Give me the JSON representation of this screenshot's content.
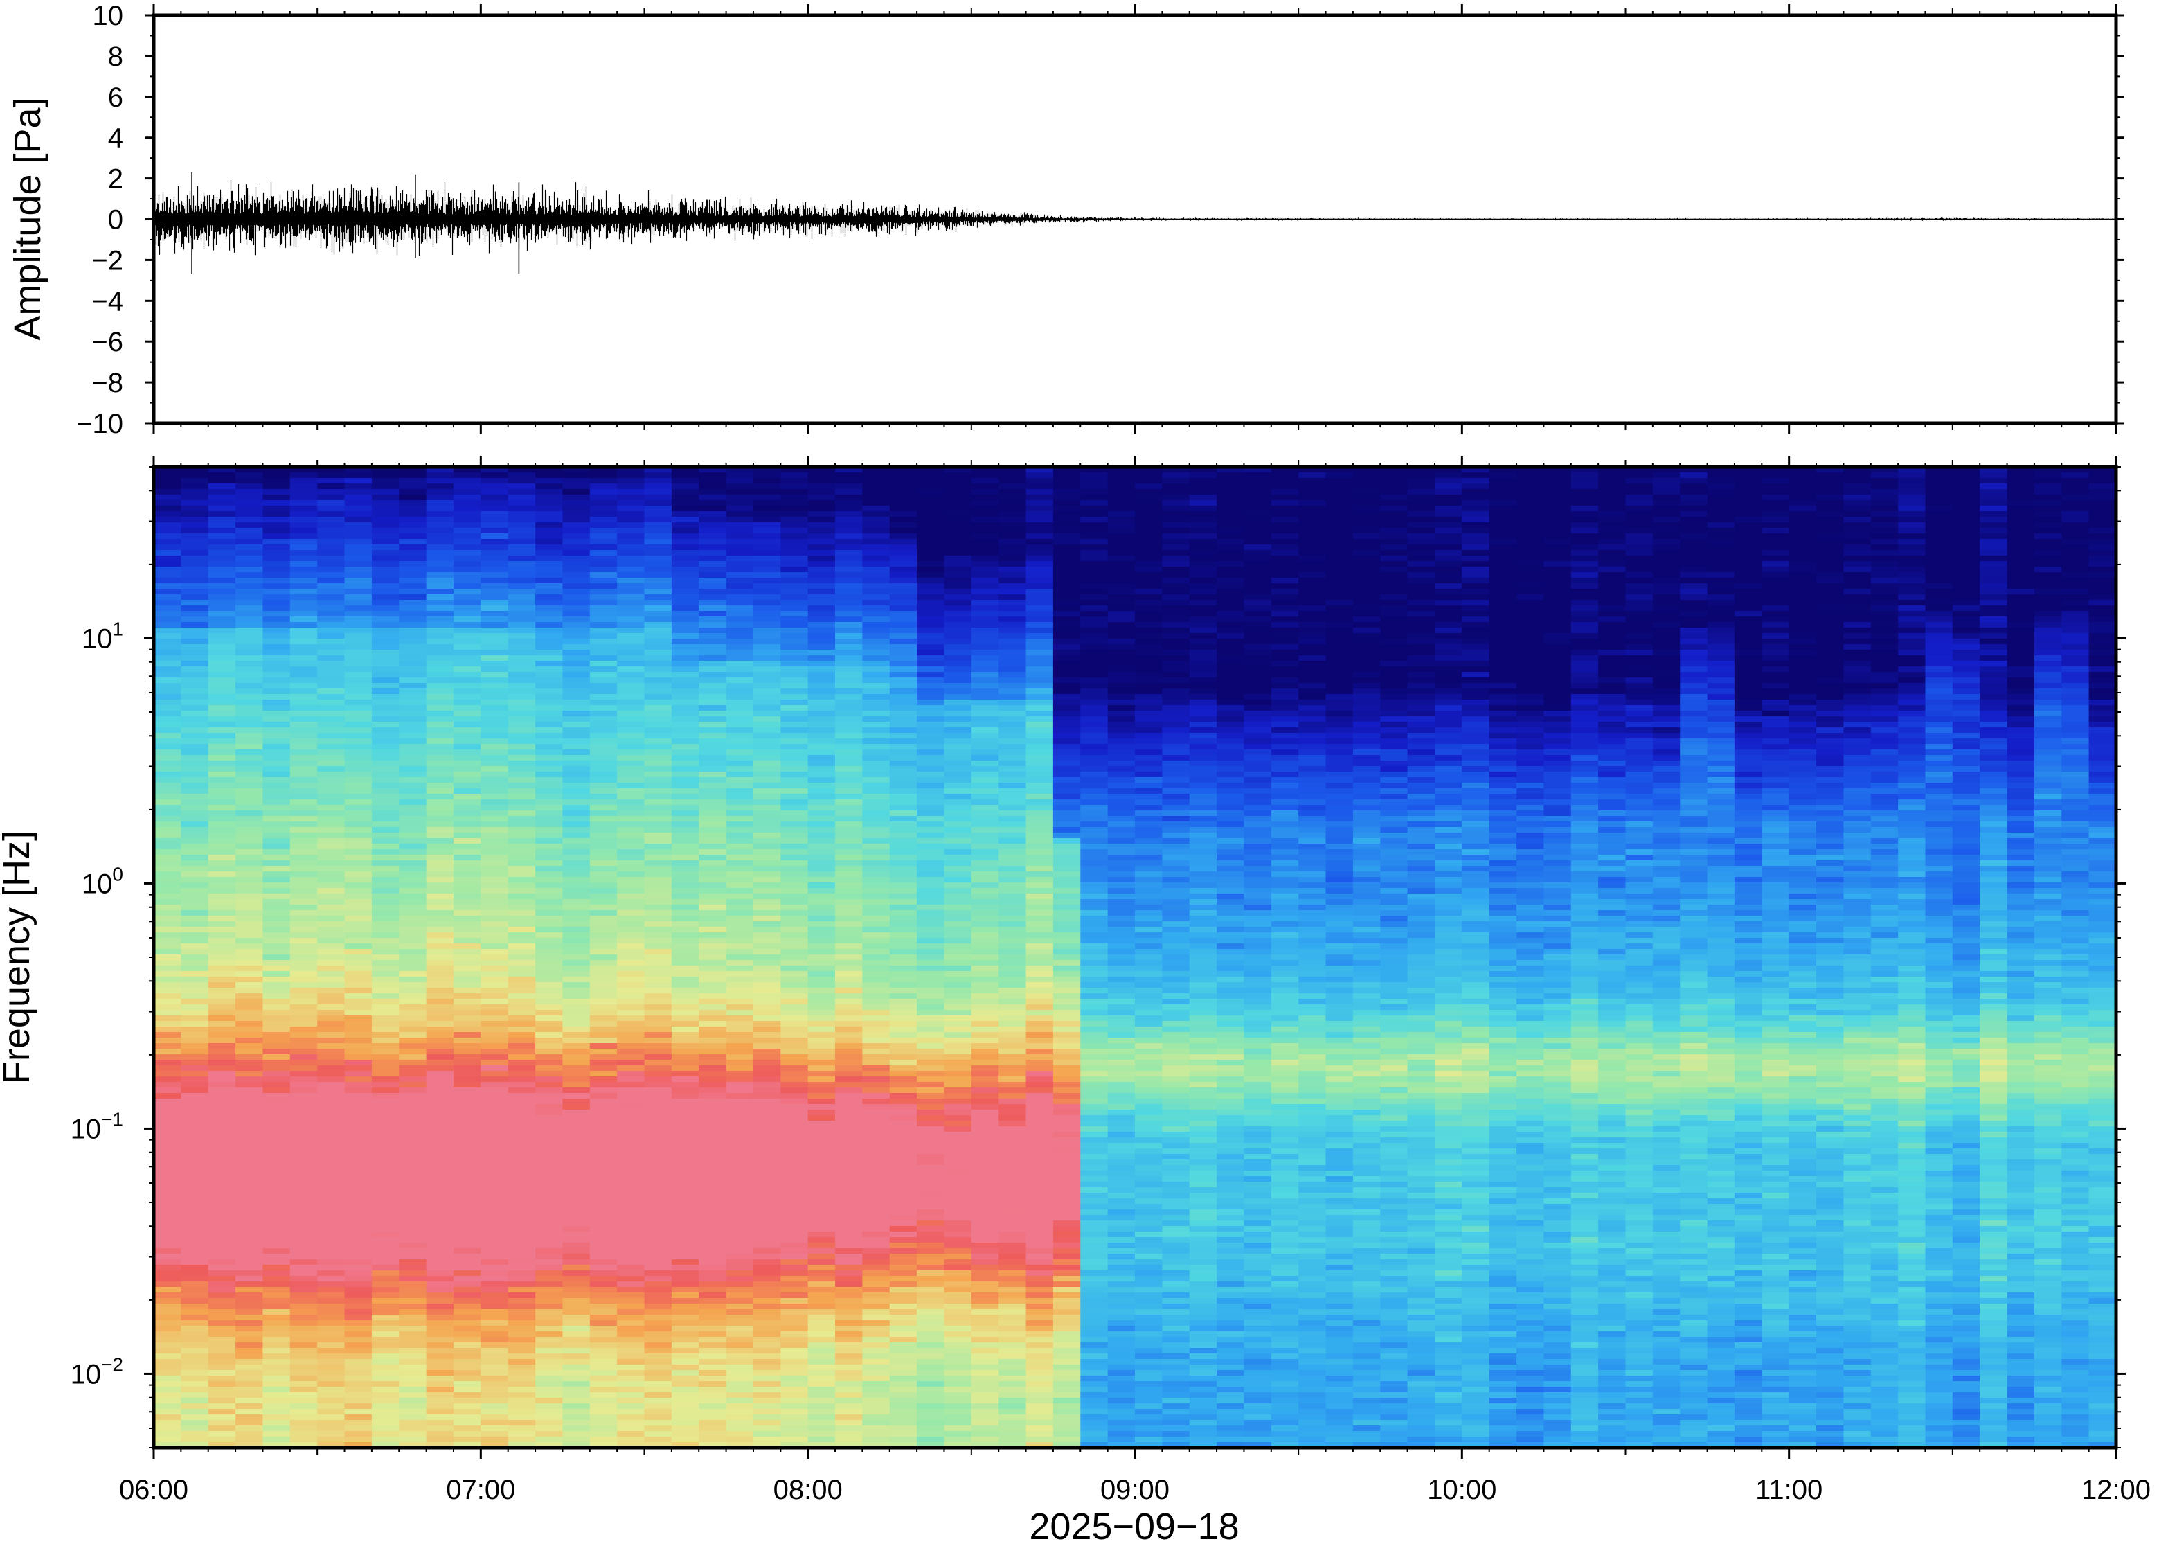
{
  "chart_data": [
    {
      "type": "line",
      "panel": "waveform",
      "ylabel": "Amplitude [Pa]",
      "ylim": [
        -10,
        10
      ],
      "yticks": [
        10,
        8,
        6,
        4,
        2,
        0,
        -2,
        -4,
        -6,
        -8,
        -10
      ],
      "ytick_labels": [
        "10",
        "8",
        "6",
        "4",
        "2",
        "0",
        "−2",
        "−4",
        "−6",
        "−8",
        "−10"
      ],
      "xlim": [
        "06:00",
        "12:00"
      ],
      "envelope": {
        "time": [
          "06:00",
          "06:15",
          "06:30",
          "06:45",
          "07:00",
          "07:15",
          "07:30",
          "07:45",
          "08:00",
          "08:15",
          "08:30",
          "08:45",
          "09:00",
          "10:00",
          "11:00",
          "11:30",
          "12:00"
        ],
        "amplitude_pa": [
          1.9,
          1.7,
          1.6,
          1.7,
          1.5,
          1.4,
          1.2,
          1.0,
          0.9,
          0.8,
          0.5,
          0.2,
          0.08,
          0.05,
          0.05,
          0.08,
          0.05
        ]
      },
      "peaks": [
        {
          "time": "06:07",
          "max": 2.3,
          "min": -2.7
        },
        {
          "time": "06:48",
          "max": 2.2,
          "min": -1.9
        },
        {
          "time": "07:07",
          "max": 1.8,
          "min": -2.7
        }
      ],
      "line_color": "#000000"
    },
    {
      "type": "heatmap",
      "panel": "spectrogram",
      "ylabel": "Frequency [Hz]",
      "yscale": "log",
      "ylim_hz": [
        0.005,
        50
      ],
      "yticks_hz": [
        0.01,
        0.1,
        1,
        10
      ],
      "ytick_base": "10",
      "ytick_exponents": [
        "−2",
        "−1",
        "0",
        "1"
      ],
      "xlim": [
        "06:00",
        "12:00"
      ],
      "xticks": [
        "06:00",
        "07:00",
        "08:00",
        "09:00",
        "10:00",
        "11:00",
        "12:00"
      ],
      "xlabel": "2025−09−18",
      "colormap": "jet",
      "regime_change_time": "08:48",
      "colors": {
        "dark": "#0a0570",
        "low": "#1b55e6",
        "mid": "#46c8e6",
        "green": "#9ae6a0",
        "yellow": "#e8e890",
        "orange": "#f5a050",
        "red": "#ee5c5c"
      }
    }
  ]
}
